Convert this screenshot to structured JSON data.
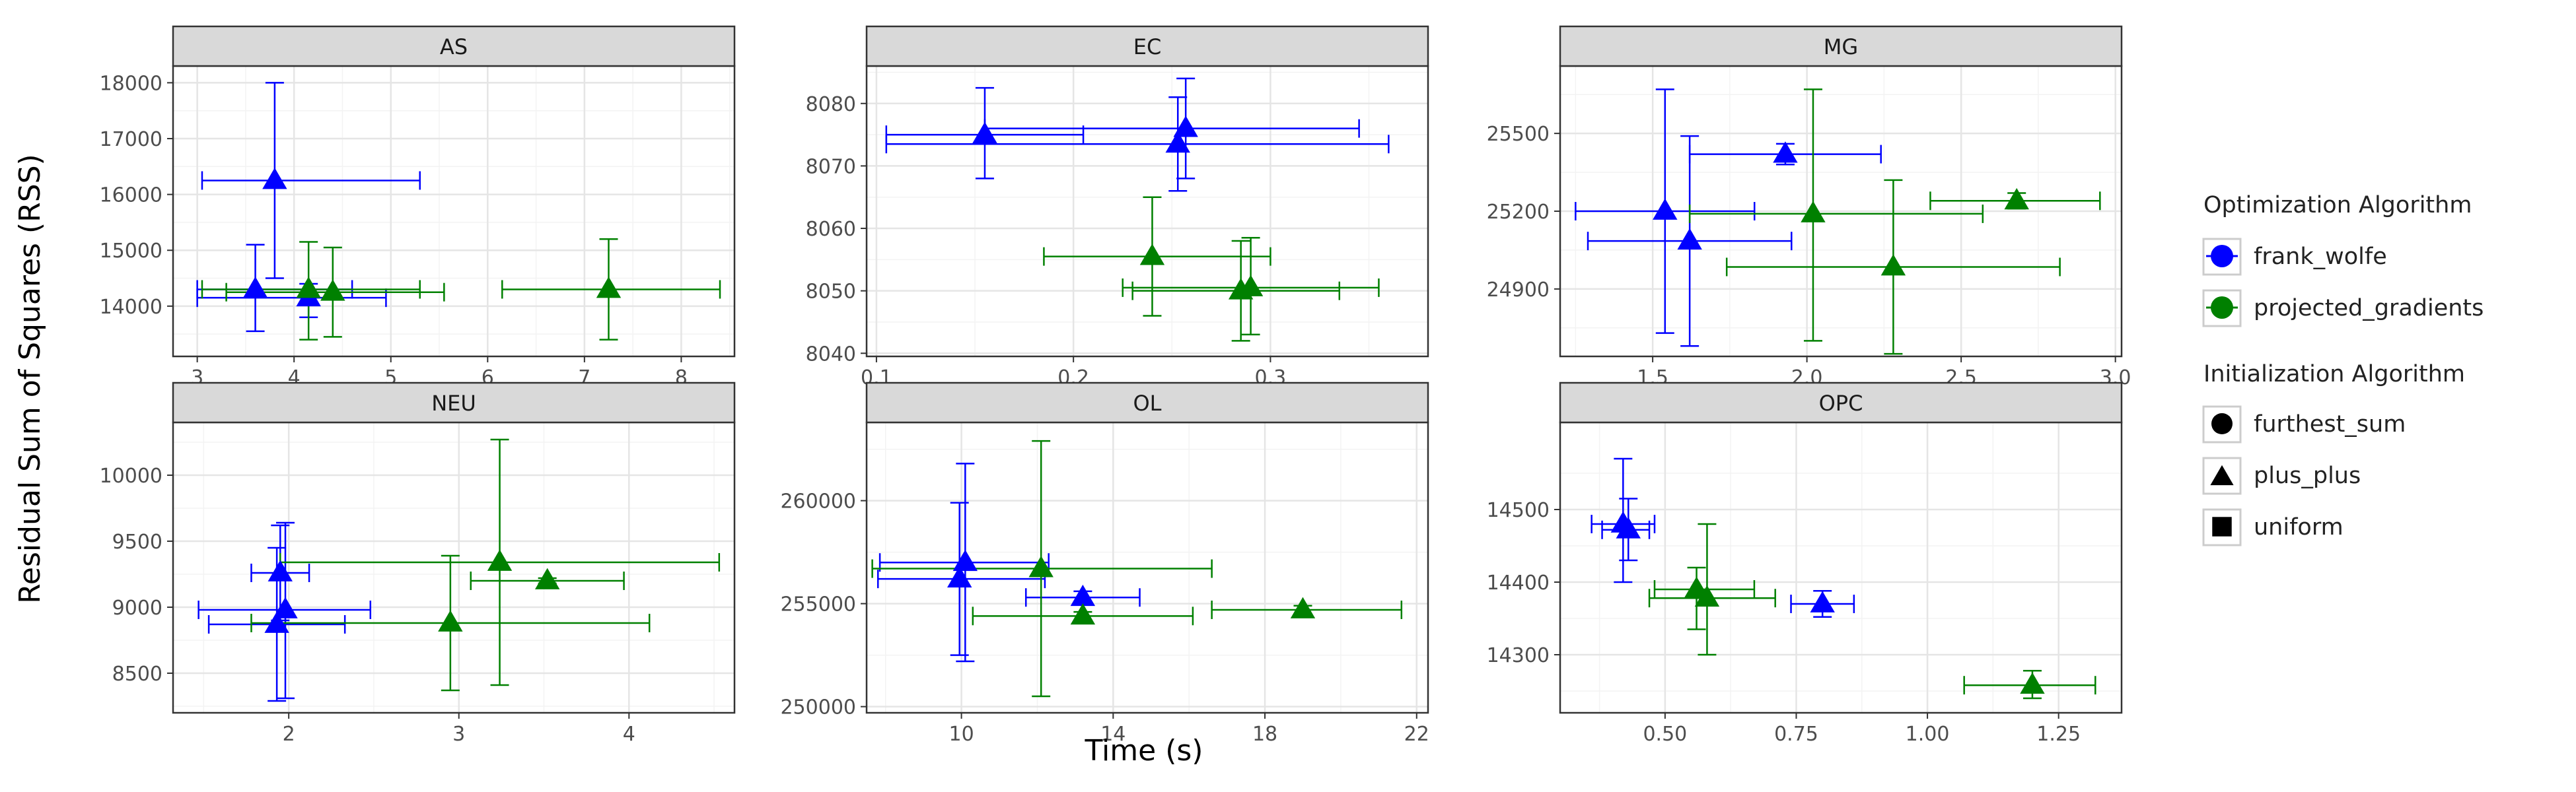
{
  "figure": {
    "ylabel": "Residual Sum of Squares (RSS)",
    "xlabel": "Time (s)"
  },
  "legend": {
    "color_title": "Optimization Algorithm",
    "color_entries": [
      {
        "label": "frank_wolfe",
        "color": "#0000ff"
      },
      {
        "label": "projected_gradients",
        "color": "#008000"
      }
    ],
    "shape_title": "Initialization Algorithm",
    "shape_entries": [
      {
        "label": "furthest_sum",
        "shape": "circle"
      },
      {
        "label": "plus_plus",
        "shape": "triangle"
      },
      {
        "label": "uniform",
        "shape": "square"
      }
    ]
  },
  "colors": {
    "frank_wolfe": "#0000ff",
    "projected_gradients": "#008000",
    "strip_bg": "#d9d9d9",
    "panel_border": "#333333",
    "grid_major": "#e5e5e5",
    "grid_minor": "#f3f3f3"
  },
  "chart_data": [
    {
      "type": "scatter",
      "title": "AS",
      "xlim": [
        2.75,
        8.55
      ],
      "ylim": [
        13100,
        18300
      ],
      "xticks": [
        3,
        4,
        5,
        6,
        7,
        8
      ],
      "yticks": [
        14000,
        15000,
        16000,
        17000,
        18000
      ],
      "points": [
        {
          "algo": "frank_wolfe",
          "init": "furthest_sum",
          "x": 3.8,
          "y": 16250,
          "xmin": 3.05,
          "xmax": 5.3,
          "ymin": 14500,
          "ymax": 18000
        },
        {
          "algo": "frank_wolfe",
          "init": "plus_plus",
          "x": 4.15,
          "y": 14150,
          "xmin": 3.0,
          "xmax": 4.95,
          "ymin": 13800,
          "ymax": 14400
        },
        {
          "algo": "frank_wolfe",
          "init": "uniform",
          "x": 3.6,
          "y": 14300,
          "xmin": 3.0,
          "xmax": 4.6,
          "ymin": 13550,
          "ymax": 15100
        },
        {
          "algo": "projected_gradients",
          "init": "furthest_sum",
          "x": 7.25,
          "y": 14300,
          "xmin": 6.15,
          "xmax": 8.4,
          "ymin": 13400,
          "ymax": 15200
        },
        {
          "algo": "projected_gradients",
          "init": "plus_plus",
          "x": 4.4,
          "y": 14250,
          "xmin": 3.3,
          "xmax": 5.55,
          "ymin": 13450,
          "ymax": 15050
        },
        {
          "algo": "projected_gradients",
          "init": "uniform",
          "x": 4.15,
          "y": 14300,
          "xmin": 3.05,
          "xmax": 5.3,
          "ymin": 13400,
          "ymax": 15150
        }
      ]
    },
    {
      "type": "scatter",
      "title": "EC",
      "xlim": [
        0.095,
        0.38
      ],
      "ylim": [
        8039.5,
        8086
      ],
      "xticks": [
        0.1,
        0.2,
        0.3
      ],
      "yticks": [
        8040,
        8050,
        8060,
        8070,
        8080
      ],
      "points": [
        {
          "algo": "frank_wolfe",
          "init": "furthest_sum",
          "x": 0.155,
          "y": 8075,
          "xmin": 0.105,
          "xmax": 0.205,
          "ymin": 8068,
          "ymax": 8082.5
        },
        {
          "algo": "frank_wolfe",
          "init": "plus_plus",
          "x": 0.257,
          "y": 8076,
          "xmin": 0.155,
          "xmax": 0.345,
          "ymin": 8068,
          "ymax": 8084
        },
        {
          "algo": "frank_wolfe",
          "init": "uniform",
          "x": 0.253,
          "y": 8073.5,
          "xmin": 0.105,
          "xmax": 0.36,
          "ymin": 8066,
          "ymax": 8081
        },
        {
          "algo": "projected_gradients",
          "init": "furthest_sum",
          "x": 0.24,
          "y": 8055.5,
          "xmin": 0.185,
          "xmax": 0.3,
          "ymin": 8046,
          "ymax": 8065
        },
        {
          "algo": "projected_gradients",
          "init": "plus_plus",
          "x": 0.29,
          "y": 8050.5,
          "xmin": 0.225,
          "xmax": 0.355,
          "ymin": 8043,
          "ymax": 8058.5
        },
        {
          "algo": "projected_gradients",
          "init": "uniform",
          "x": 0.285,
          "y": 8050,
          "xmin": 0.23,
          "xmax": 0.335,
          "ymin": 8042,
          "ymax": 8058
        }
      ]
    },
    {
      "type": "scatter",
      "title": "MG",
      "xlim": [
        1.2,
        3.02
      ],
      "ylim": [
        24640,
        25760
      ],
      "xticks": [
        1.5,
        2.0,
        2.5,
        3.0
      ],
      "yticks": [
        24900,
        25200,
        25500
      ],
      "points": [
        {
          "algo": "frank_wolfe",
          "init": "furthest_sum",
          "x": 1.93,
          "y": 25420,
          "xmin": 1.62,
          "xmax": 2.24,
          "ymin": 25380,
          "ymax": 25460
        },
        {
          "algo": "frank_wolfe",
          "init": "plus_plus",
          "x": 1.54,
          "y": 25200,
          "xmin": 1.25,
          "xmax": 1.83,
          "ymin": 24730,
          "ymax": 25670
        },
        {
          "algo": "frank_wolfe",
          "init": "uniform",
          "x": 1.62,
          "y": 25085,
          "xmin": 1.29,
          "xmax": 1.95,
          "ymin": 24680,
          "ymax": 25490
        },
        {
          "algo": "projected_gradients",
          "init": "furthest_sum",
          "x": 2.68,
          "y": 25240,
          "xmin": 2.4,
          "xmax": 2.95,
          "ymin": 25210,
          "ymax": 25270
        },
        {
          "algo": "projected_gradients",
          "init": "plus_plus",
          "x": 2.28,
          "y": 24985,
          "xmin": 1.74,
          "xmax": 2.82,
          "ymin": 24650,
          "ymax": 25320
        },
        {
          "algo": "projected_gradients",
          "init": "uniform",
          "x": 2.02,
          "y": 25190,
          "xmin": 1.62,
          "xmax": 2.57,
          "ymin": 24700,
          "ymax": 25670
        }
      ]
    },
    {
      "type": "scatter",
      "title": "NEU",
      "xlim": [
        1.32,
        4.62
      ],
      "ylim": [
        8200,
        10400
      ],
      "xticks": [
        2,
        3,
        4
      ],
      "yticks": [
        8500,
        9000,
        9500,
        10000
      ],
      "points": [
        {
          "algo": "frank_wolfe",
          "init": "furthest_sum",
          "x": 1.95,
          "y": 9260,
          "xmin": 1.78,
          "xmax": 2.12,
          "ymin": 8900,
          "ymax": 9620
        },
        {
          "algo": "frank_wolfe",
          "init": "plus_plus",
          "x": 1.93,
          "y": 8870,
          "xmin": 1.53,
          "xmax": 2.33,
          "ymin": 8290,
          "ymax": 9450
        },
        {
          "algo": "frank_wolfe",
          "init": "uniform",
          "x": 1.98,
          "y": 8980,
          "xmin": 1.47,
          "xmax": 2.48,
          "ymin": 8310,
          "ymax": 9640
        },
        {
          "algo": "projected_gradients",
          "init": "furthest_sum",
          "x": 3.52,
          "y": 9200,
          "xmin": 3.07,
          "xmax": 3.97,
          "ymin": 9180,
          "ymax": 9220
        },
        {
          "algo": "projected_gradients",
          "init": "plus_plus",
          "x": 2.95,
          "y": 8880,
          "xmin": 1.78,
          "xmax": 4.12,
          "ymin": 8370,
          "ymax": 9390
        },
        {
          "algo": "projected_gradients",
          "init": "uniform",
          "x": 3.24,
          "y": 9340,
          "xmin": 1.95,
          "xmax": 4.53,
          "ymin": 8410,
          "ymax": 10270
        }
      ]
    },
    {
      "type": "scatter",
      "title": "OL",
      "xlim": [
        7.5,
        22.3
      ],
      "ylim": [
        249700,
        263800
      ],
      "xticks": [
        10,
        14,
        18,
        22
      ],
      "yticks": [
        250000,
        255000,
        260000
      ],
      "points": [
        {
          "algo": "frank_wolfe",
          "init": "furthest_sum",
          "x": 13.2,
          "y": 255300,
          "xmin": 11.7,
          "xmax": 14.7,
          "ymin": 255000,
          "ymax": 255600
        },
        {
          "algo": "frank_wolfe",
          "init": "plus_plus",
          "x": 10.1,
          "y": 257000,
          "xmin": 7.85,
          "xmax": 12.3,
          "ymin": 252200,
          "ymax": 261800
        },
        {
          "algo": "frank_wolfe",
          "init": "uniform",
          "x": 9.95,
          "y": 256200,
          "xmin": 7.8,
          "xmax": 12.2,
          "ymin": 252500,
          "ymax": 259900
        },
        {
          "algo": "projected_gradients",
          "init": "furthest_sum",
          "x": 19.0,
          "y": 254700,
          "xmin": 16.6,
          "xmax": 21.6,
          "ymin": 254500,
          "ymax": 254900
        },
        {
          "algo": "projected_gradients",
          "init": "plus_plus",
          "x": 12.1,
          "y": 256700,
          "xmin": 7.65,
          "xmax": 16.6,
          "ymin": 250500,
          "ymax": 262900
        },
        {
          "algo": "projected_gradients",
          "init": "uniform",
          "x": 13.2,
          "y": 254400,
          "xmin": 10.3,
          "xmax": 16.1,
          "ymin": 254200,
          "ymax": 254600
        }
      ]
    },
    {
      "type": "scatter",
      "title": "OPC",
      "xlim": [
        0.3,
        1.37
      ],
      "ylim": [
        14220,
        14620
      ],
      "xticks": [
        0.5,
        0.75,
        1.0,
        1.25
      ],
      "yticks": [
        14300,
        14400,
        14500
      ],
      "points": [
        {
          "algo": "frank_wolfe",
          "init": "furthest_sum",
          "x": 0.8,
          "y": 14370,
          "xmin": 0.74,
          "xmax": 0.86,
          "ymin": 14352,
          "ymax": 14388
        },
        {
          "algo": "frank_wolfe",
          "init": "plus_plus",
          "x": 0.43,
          "y": 14472,
          "xmin": 0.38,
          "xmax": 0.47,
          "ymin": 14430,
          "ymax": 14515
        },
        {
          "algo": "frank_wolfe",
          "init": "uniform",
          "x": 0.42,
          "y": 14480,
          "xmin": 0.36,
          "xmax": 0.48,
          "ymin": 14400,
          "ymax": 14570
        },
        {
          "algo": "projected_gradients",
          "init": "furthest_sum",
          "x": 1.2,
          "y": 14258,
          "xmin": 1.07,
          "xmax": 1.32,
          "ymin": 14240,
          "ymax": 14278
        },
        {
          "algo": "projected_gradients",
          "init": "plus_plus",
          "x": 0.56,
          "y": 14390,
          "xmin": 0.48,
          "xmax": 0.67,
          "ymin": 14335,
          "ymax": 14420
        },
        {
          "algo": "projected_gradients",
          "init": "uniform",
          "x": 0.58,
          "y": 14378,
          "xmin": 0.47,
          "xmax": 0.71,
          "ymin": 14300,
          "ymax": 14480
        }
      ]
    }
  ]
}
